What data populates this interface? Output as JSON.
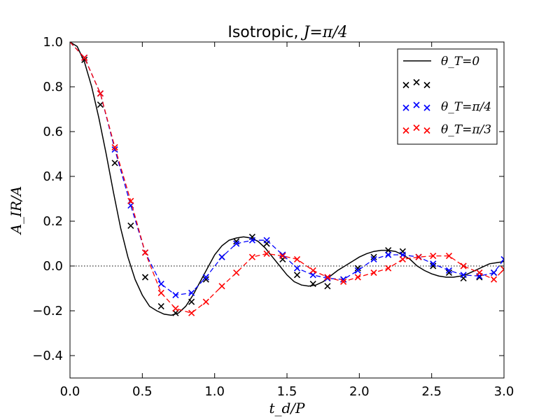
{
  "chart_data": {
    "type": "line",
    "title": "Isotropic, J=π/4",
    "title_prefix": "Isotropic, ",
    "title_math": "J=π/4",
    "xlabel": "t_d/P",
    "ylabel": "A_IR/A",
    "xlim": [
      0.0,
      3.0
    ],
    "ylim": [
      -0.5,
      1.0
    ],
    "x_ticks": [
      "0.0",
      "0.5",
      "1.0",
      "1.5",
      "2.0",
      "2.5",
      "3.0"
    ],
    "y_ticks": [
      "−0.4",
      "−0.2",
      "0.0",
      "0.2",
      "0.4",
      "0.6",
      "0.8",
      "1.0"
    ],
    "zero_line": "dotted",
    "legend_position": "top-right",
    "series": [
      {
        "name": "θ_T=0",
        "style": "solid line",
        "color": "#000000",
        "x": [
          0.0,
          0.05,
          0.1,
          0.15,
          0.2,
          0.25,
          0.3,
          0.35,
          0.4,
          0.45,
          0.5,
          0.55,
          0.6,
          0.65,
          0.7,
          0.75,
          0.8,
          0.85,
          0.9,
          0.95,
          1.0,
          1.05,
          1.1,
          1.15,
          1.2,
          1.25,
          1.3,
          1.35,
          1.4,
          1.45,
          1.5,
          1.55,
          1.6,
          1.65,
          1.7,
          1.75,
          1.8,
          1.85,
          1.9,
          1.95,
          2.0,
          2.05,
          2.1,
          2.15,
          2.2,
          2.25,
          2.3,
          2.35,
          2.4,
          2.45,
          2.5,
          2.55,
          2.6,
          2.65,
          2.7,
          2.75,
          2.8,
          2.85,
          2.9,
          2.95,
          3.0
        ],
        "values": [
          1.0,
          0.98,
          0.91,
          0.8,
          0.66,
          0.5,
          0.33,
          0.17,
          0.04,
          -0.06,
          -0.13,
          -0.18,
          -0.2,
          -0.215,
          -0.22,
          -0.21,
          -0.18,
          -0.13,
          -0.07,
          -0.01,
          0.05,
          0.09,
          0.115,
          0.125,
          0.13,
          0.125,
          0.11,
          0.08,
          0.04,
          0.0,
          -0.04,
          -0.07,
          -0.085,
          -0.09,
          -0.085,
          -0.07,
          -0.045,
          -0.02,
          0.0,
          0.02,
          0.04,
          0.055,
          0.065,
          0.07,
          0.07,
          0.065,
          0.05,
          0.03,
          0.0,
          -0.02,
          -0.035,
          -0.045,
          -0.05,
          -0.05,
          -0.045,
          -0.035,
          -0.02,
          -0.005,
          0.01,
          0.015,
          0.02
        ]
      },
      {
        "name": "",
        "style": "x markers",
        "color": "#000000",
        "x": [
          0.1,
          0.21,
          0.31,
          0.42,
          0.52,
          0.63,
          0.73,
          0.84,
          0.94,
          1.05,
          1.15,
          1.26,
          1.36,
          1.47,
          1.57,
          1.68,
          1.78,
          1.89,
          1.99,
          2.1,
          2.2,
          2.3,
          2.41,
          2.51,
          2.62,
          2.72,
          2.83,
          2.93
        ],
        "values": [
          0.92,
          0.72,
          0.46,
          0.18,
          -0.05,
          -0.18,
          -0.21,
          -0.16,
          -0.06,
          0.04,
          0.11,
          0.13,
          0.1,
          0.03,
          -0.04,
          -0.08,
          -0.09,
          -0.06,
          -0.01,
          0.04,
          0.07,
          0.065,
          0.04,
          0.0,
          -0.03,
          -0.055,
          -0.05,
          -0.03
        ]
      },
      {
        "name": "θ_T=π/4",
        "style": "dashed line with x markers",
        "color": "#0000ff",
        "x": [
          0.0,
          0.1,
          0.21,
          0.31,
          0.42,
          0.52,
          0.63,
          0.73,
          0.84,
          0.94,
          1.05,
          1.15,
          1.26,
          1.36,
          1.47,
          1.57,
          1.68,
          1.78,
          1.89,
          1.99,
          2.1,
          2.2,
          2.3,
          2.41,
          2.51,
          2.62,
          2.72,
          2.83,
          2.93,
          3.0
        ],
        "values": [
          1.0,
          0.93,
          0.77,
          0.52,
          0.27,
          0.06,
          -0.08,
          -0.13,
          -0.12,
          -0.05,
          0.04,
          0.1,
          0.115,
          0.115,
          0.05,
          -0.01,
          -0.04,
          -0.055,
          -0.06,
          -0.02,
          0.03,
          0.05,
          0.05,
          0.04,
          0.01,
          -0.02,
          -0.04,
          -0.045,
          -0.03,
          0.03
        ]
      },
      {
        "name": "θ_T=π/3",
        "style": "dashed line with x markers",
        "color": "#ff0000",
        "x": [
          0.0,
          0.1,
          0.21,
          0.31,
          0.42,
          0.52,
          0.63,
          0.73,
          0.84,
          0.94,
          1.05,
          1.15,
          1.26,
          1.36,
          1.47,
          1.57,
          1.68,
          1.78,
          1.89,
          1.99,
          2.1,
          2.2,
          2.3,
          2.41,
          2.51,
          2.62,
          2.72,
          2.83,
          2.93,
          3.0
        ],
        "values": [
          1.0,
          0.93,
          0.77,
          0.53,
          0.29,
          0.06,
          -0.12,
          -0.19,
          -0.21,
          -0.16,
          -0.09,
          -0.03,
          0.04,
          0.055,
          0.045,
          0.03,
          -0.02,
          -0.05,
          -0.07,
          -0.05,
          -0.03,
          -0.01,
          0.03,
          0.04,
          0.045,
          0.045,
          0.0,
          -0.03,
          -0.06,
          -0.015
        ]
      }
    ],
    "legend": [
      {
        "label": "θ_T=0",
        "symbol": "line",
        "color": "#000000"
      },
      {
        "label": "",
        "symbol": "x",
        "color": "#000000"
      },
      {
        "label": "θ_T=π/4",
        "symbol": "x",
        "color": "#0000ff"
      },
      {
        "label": "θ_T=π/3",
        "symbol": "x",
        "color": "#ff0000"
      }
    ]
  }
}
